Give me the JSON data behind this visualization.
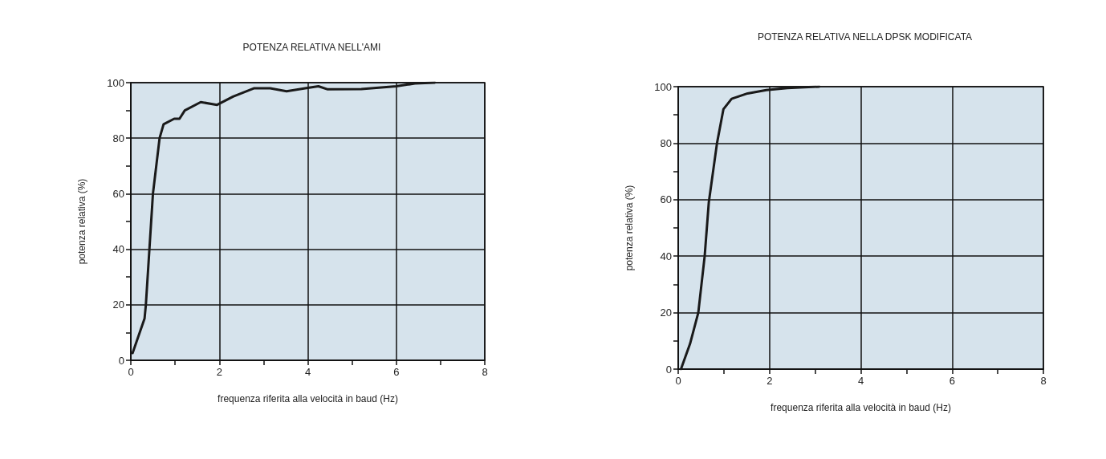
{
  "chart_data": [
    {
      "type": "line",
      "title": "POTENZA RELATIVA NELL'AMI",
      "xlabel": "frequenza riferita alla velocità in baud (Hz)",
      "ylabel": "potenza relativa (%)",
      "x": [
        0.04,
        0.31,
        0.34,
        0.42,
        0.5,
        0.65,
        0.74,
        0.98,
        1.1,
        1.22,
        1.58,
        1.95,
        2.31,
        2.79,
        3.15,
        3.52,
        3.94,
        4.24,
        4.45,
        5.21,
        6.0,
        6.42,
        6.87
      ],
      "series": [
        {
          "color": "#1a1a1a",
          "values": [
            2.6,
            15,
            20,
            40,
            60,
            80,
            85,
            87,
            87,
            90,
            93,
            92,
            95,
            98,
            98,
            96.9,
            98,
            98.7,
            97.6,
            97.7,
            98.7,
            99.7,
            100
          ]
        }
      ],
      "xlim": [
        0,
        8
      ],
      "xticks": [
        0,
        2,
        4,
        6,
        8
      ],
      "ylim": [
        0,
        100
      ],
      "yticks": [
        0,
        20,
        40,
        60,
        80,
        100
      ],
      "grid": true,
      "marker": "none",
      "line_style": "solid"
    },
    {
      "type": "line",
      "title": "POTENZA RELATIVA NELLA DPSK MODIFICATA",
      "xlabel": "frequenza riferita alla velocità in baud (Hz)",
      "ylabel": "potenza relativa (%)",
      "x": [
        0.06,
        0.26,
        0.44,
        0.58,
        0.67,
        0.85,
        0.99,
        1.17,
        1.52,
        1.93,
        2.39,
        3.09
      ],
      "series": [
        {
          "color": "#1a1a1a",
          "values": [
            0,
            9,
            20,
            40,
            59,
            80,
            92,
            95.7,
            97.6,
            98.8,
            99.5,
            100
          ]
        }
      ],
      "xlim": [
        0,
        8
      ],
      "xticks": [
        0,
        2,
        4,
        6,
        8
      ],
      "ylim": [
        0,
        100
      ],
      "yticks": [
        0,
        20,
        40,
        60,
        80,
        100
      ],
      "grid": true,
      "marker": "none",
      "line_style": "solid"
    }
  ]
}
